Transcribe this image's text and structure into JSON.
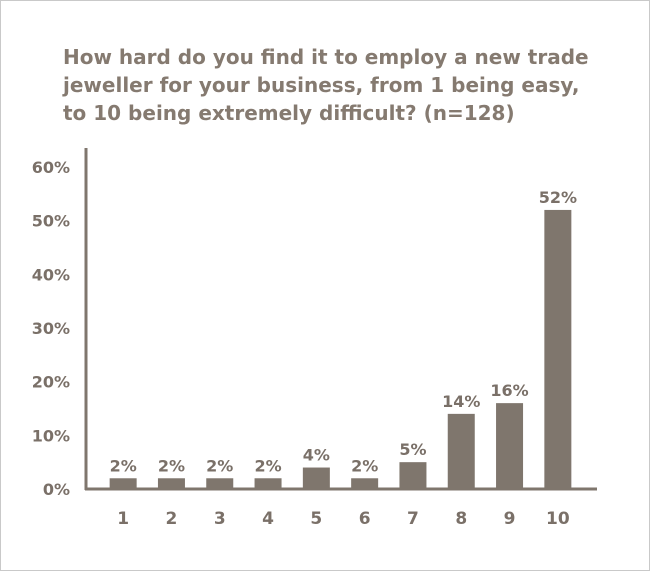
{
  "chart_data": {
    "type": "bar",
    "title_lines": [
      "How hard do you find it to employ a new trade",
      "jeweller for your business, from 1 being easy,",
      "to 10 being extremely difficult?  (n=128)"
    ],
    "categories": [
      "1",
      "2",
      "3",
      "4",
      "5",
      "6",
      "7",
      "8",
      "9",
      "10"
    ],
    "values": [
      2,
      2,
      2,
      2,
      4,
      2,
      5,
      14,
      16,
      52
    ],
    "data_labels": [
      "2%",
      "2%",
      "2%",
      "2%",
      "4%",
      "2%",
      "5%",
      "14%",
      "16%",
      "52%"
    ],
    "xlabel": "",
    "ylabel": "",
    "ylim": [
      0,
      60
    ],
    "yticks": [
      0,
      10,
      20,
      30,
      40,
      50,
      60
    ],
    "ytick_labels": [
      "0%",
      "10%",
      "20%",
      "30%",
      "40%",
      "50%",
      "60%"
    ],
    "grid": false,
    "bar_color": "#7f766d",
    "axis_color": "#7f766d"
  }
}
